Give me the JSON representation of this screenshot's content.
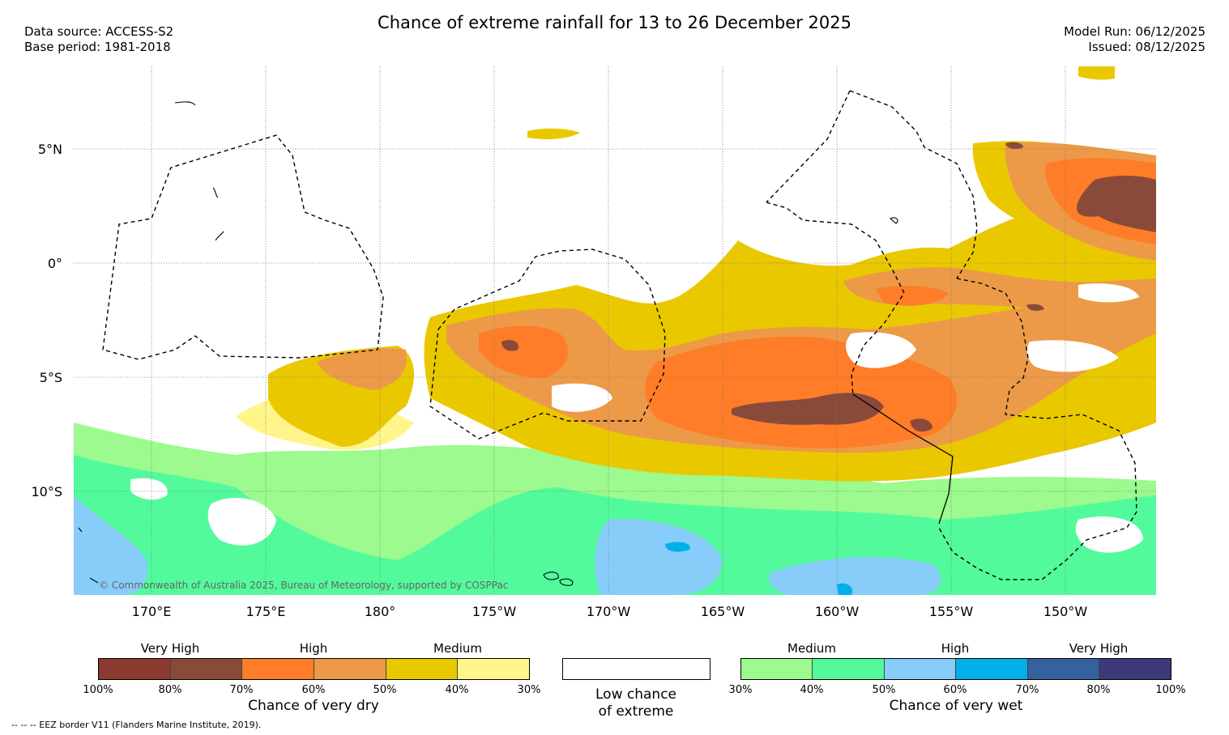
{
  "title": "Chance of extreme rainfall for 13 to 26 December 2025",
  "data_source": "Data source: ACCESS-S2",
  "base_period": "Base period: 1981-2018",
  "model_run": "Model Run: 06/12/2025",
  "issued": "Issued: 08/12/2025",
  "lat_labels": [
    "5°N",
    "0°",
    "5°S",
    "10°S"
  ],
  "lon_labels": [
    "170°E",
    "175°E",
    "180°",
    "175°W",
    "170°W",
    "165°W",
    "160°W",
    "155°W",
    "150°W"
  ],
  "copyright": "© Commonwealth of Australia 2025, Bureau of Meteorology, supported by COSPPac",
  "footnote": "-- -- -- EEZ border V11 (Flanders Marine Institute, 2019).",
  "legend": {
    "dry": {
      "caption": "Chance of very dry",
      "categories": [
        "Very High",
        "High",
        "Medium"
      ],
      "ticks": [
        "100%",
        "80%",
        "70%",
        "60%",
        "50%",
        "40%",
        "30%"
      ],
      "colors": [
        "#8b3a2f",
        "#8a4a3a",
        "#ff7d28",
        "#ec9a48",
        "#eac800",
        "#fff58a"
      ]
    },
    "none": {
      "caption_line1": "Low chance",
      "caption_line2": "of extreme"
    },
    "wet": {
      "caption": "Chance of very wet",
      "categories": [
        "Medium",
        "High",
        "Very High"
      ],
      "ticks": [
        "30%",
        "40%",
        "50%",
        "60%",
        "70%",
        "80%",
        "100%"
      ],
      "colors": [
        "#9cfa8e",
        "#52fa9c",
        "#88ccfa",
        "#00b0ea",
        "#35619c",
        "#3c3a78"
      ]
    }
  }
}
